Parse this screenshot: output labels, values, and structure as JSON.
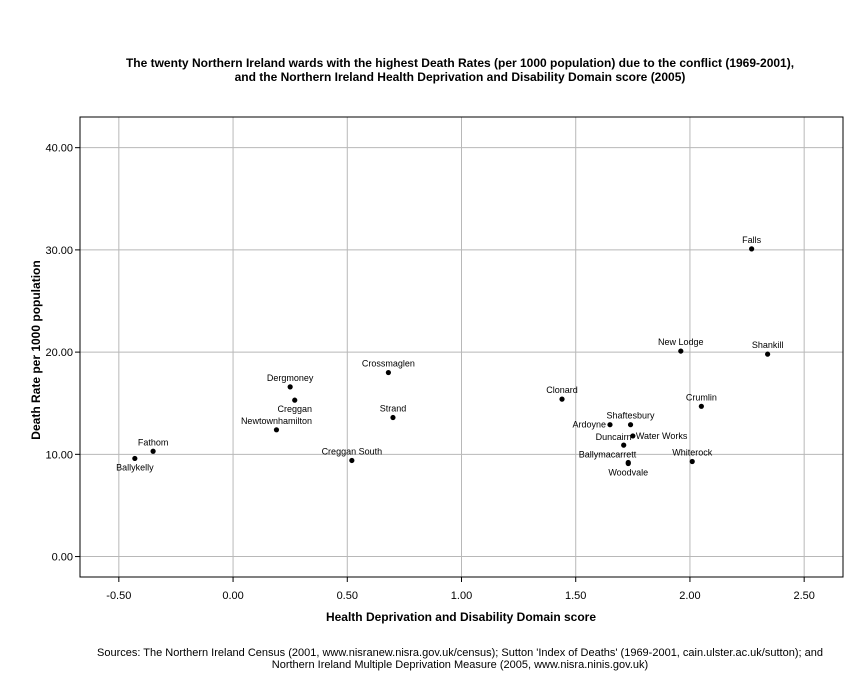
{
  "title_line1": "The twenty Northern Ireland wards with the highest Death Rates (per 1000 population) due to the conflict (1969-2001),",
  "title_line2": "and the Northern Ireland Health Deprivation and Disability Domain score (2005)",
  "source_line1": "Sources: The Northern Ireland Census (2001, www.nisranew.nisra.gov.uk/census); Sutton 'Index of Deaths' (1969-2001, cain.ulster.ac.uk/sutton); and",
  "source_line2": "Northern Ireland Multiple Deprivation Measure (2005, www.nisra.ninis.gov.uk)",
  "chart_data": {
    "type": "scatter",
    "title": "The twenty Northern Ireland wards with the highest Death Rates (per 1000 population) due to the conflict (1969-2001), and the Northern Ireland Health Deprivation and Disability Domain score (2005)",
    "xlabel": "Health Deprivation and Disability Domain score",
    "ylabel": "Death Rate per 1000 population",
    "xlim": [
      -0.67,
      2.67
    ],
    "ylim": [
      -2.0,
      43.0
    ],
    "xticks": [
      -0.5,
      0.0,
      0.5,
      1.0,
      1.5,
      2.0,
      2.5
    ],
    "xtick_labels": [
      "-0.50",
      "0.00",
      "0.50",
      "1.00",
      "1.50",
      "2.00",
      "2.50"
    ],
    "yticks": [
      0,
      10,
      20,
      30,
      40
    ],
    "ytick_labels": [
      "0.00",
      "10.00",
      "20.00",
      "30.00",
      "40.00"
    ],
    "grid": true,
    "points": [
      {
        "label": "Falls",
        "x": 2.27,
        "y": 30.1,
        "label_pos": "above"
      },
      {
        "label": "Shankill",
        "x": 2.34,
        "y": 19.8,
        "label_pos": "above"
      },
      {
        "label": "New Lodge",
        "x": 1.96,
        "y": 20.1,
        "label_pos": "above"
      },
      {
        "label": "Crumlin",
        "x": 2.05,
        "y": 14.7,
        "label_pos": "above"
      },
      {
        "label": "Clonard",
        "x": 1.44,
        "y": 15.4,
        "label_pos": "above"
      },
      {
        "label": "Shaftesbury",
        "x": 1.74,
        "y": 12.9,
        "label_pos": "above"
      },
      {
        "label": "Ardoyne",
        "x": 1.65,
        "y": 12.9,
        "label_pos": "left"
      },
      {
        "label": "Water Works",
        "x": 1.75,
        "y": 11.8,
        "label_pos": "right"
      },
      {
        "label": "Duncairn",
        "x": 1.71,
        "y": 10.9,
        "label_pos": "aboveleft"
      },
      {
        "label": "Ballymacarrett",
        "x": 1.73,
        "y": 9.2,
        "label_pos": "aboveleft"
      },
      {
        "label": "Woodvale",
        "x": 1.73,
        "y": 9.1,
        "label_pos": "below"
      },
      {
        "label": "Whiterock",
        "x": 2.01,
        "y": 9.3,
        "label_pos": "above"
      },
      {
        "label": "Crossmaglen",
        "x": 0.68,
        "y": 18.0,
        "label_pos": "above"
      },
      {
        "label": "Strand",
        "x": 0.7,
        "y": 13.6,
        "label_pos": "above"
      },
      {
        "label": "Creggan South",
        "x": 0.52,
        "y": 9.4,
        "label_pos": "above"
      },
      {
        "label": "Dergmoney",
        "x": 0.25,
        "y": 16.6,
        "label_pos": "above"
      },
      {
        "label": "Creggan",
        "x": 0.27,
        "y": 15.3,
        "label_pos": "below"
      },
      {
        "label": "Newtownhamilton",
        "x": 0.19,
        "y": 12.4,
        "label_pos": "above"
      },
      {
        "label": "Fathom",
        "x": -0.35,
        "y": 10.3,
        "label_pos": "above"
      },
      {
        "label": "Ballykelly",
        "x": -0.43,
        "y": 9.6,
        "label_pos": "below"
      }
    ]
  }
}
